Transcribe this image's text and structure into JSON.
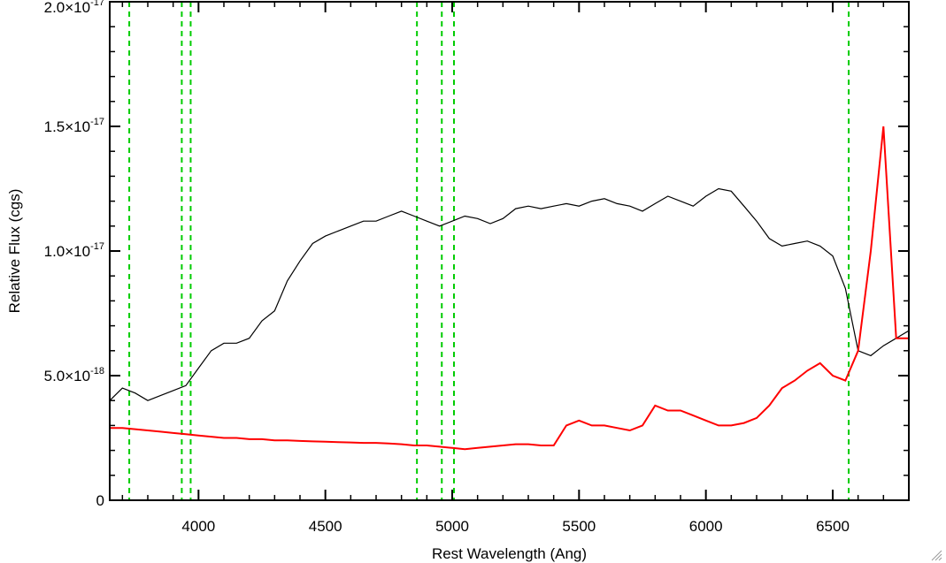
{
  "chart_data": {
    "type": "line",
    "title": "",
    "xlabel": "Rest Wavelength (Ang)",
    "ylabel": "Relative Flux (cgs)",
    "xlim": [
      3650,
      6800
    ],
    "ylim": [
      0,
      2e-17
    ],
    "x_ticks": [
      {
        "value": 4000,
        "label": "4000"
      },
      {
        "value": 4500,
        "label": "4500"
      },
      {
        "value": 5000,
        "label": "5000"
      },
      {
        "value": 5500,
        "label": "5500"
      },
      {
        "value": 6000,
        "label": "6000"
      },
      {
        "value": 6500,
        "label": "6500"
      }
    ],
    "y_ticks": [
      {
        "value": 0,
        "mant": "0",
        "exp": ""
      },
      {
        "value": 5e-18,
        "mant": "5.0×10",
        "exp": "-18"
      },
      {
        "value": 1e-17,
        "mant": "1.0×10",
        "exp": "-17"
      },
      {
        "value": 1.5e-17,
        "mant": "1.5×10",
        "exp": "-17"
      },
      {
        "value": 2e-17,
        "mant": "2.0×10",
        "exp": "-17"
      }
    ],
    "reference_lines": [
      3727,
      3934,
      3969,
      4861,
      4959,
      5007,
      6563
    ],
    "grid": false,
    "series": [
      {
        "color": "#000000",
        "x": [
          3650,
          3700,
          3750,
          3800,
          3850,
          3900,
          3950,
          4000,
          4050,
          4100,
          4150,
          4200,
          4250,
          4300,
          4350,
          4400,
          4450,
          4500,
          4550,
          4600,
          4650,
          4700,
          4750,
          4800,
          4850,
          4900,
          4950,
          5000,
          5050,
          5100,
          5150,
          5200,
          5250,
          5300,
          5350,
          5400,
          5450,
          5500,
          5550,
          5600,
          5650,
          5700,
          5750,
          5800,
          5850,
          5900,
          5950,
          6000,
          6050,
          6100,
          6150,
          6200,
          6250,
          6300,
          6350,
          6400,
          6450,
          6500,
          6550,
          6600,
          6650,
          6700,
          6750,
          6800
        ],
        "y": [
          4e-18,
          4.5e-18,
          4.3e-18,
          4e-18,
          4.2e-18,
          4.4e-18,
          4.6e-18,
          5.3e-18,
          6e-18,
          6.3e-18,
          6.3e-18,
          6.5e-18,
          7.2e-18,
          7.6e-18,
          8.8e-18,
          9.6e-18,
          1.03e-17,
          1.06e-17,
          1.08e-17,
          1.1e-17,
          1.12e-17,
          1.12e-17,
          1.14e-17,
          1.16e-17,
          1.14e-17,
          1.12e-17,
          1.1e-17,
          1.12e-17,
          1.14e-17,
          1.13e-17,
          1.11e-17,
          1.13e-17,
          1.17e-17,
          1.18e-17,
          1.17e-17,
          1.18e-17,
          1.19e-17,
          1.18e-17,
          1.2e-17,
          1.21e-17,
          1.19e-17,
          1.18e-17,
          1.16e-17,
          1.19e-17,
          1.22e-17,
          1.2e-17,
          1.18e-17,
          1.22e-17,
          1.25e-17,
          1.24e-17,
          1.18e-17,
          1.12e-17,
          1.05e-17,
          1.02e-17,
          1.03e-17,
          1.04e-17,
          1.02e-17,
          9.8e-18,
          8.5e-18,
          6e-18,
          5.8e-18,
          6.2e-18,
          6.5e-18,
          6.8e-18
        ]
      },
      {
        "color": "#ff0000",
        "x": [
          3650,
          3700,
          3750,
          3800,
          3850,
          3900,
          3950,
          4000,
          4050,
          4100,
          4150,
          4200,
          4250,
          4300,
          4350,
          4400,
          4450,
          4500,
          4550,
          4600,
          4650,
          4700,
          4750,
          4800,
          4850,
          4900,
          4950,
          5000,
          5050,
          5100,
          5150,
          5200,
          5250,
          5300,
          5350,
          5400,
          5450,
          5500,
          5550,
          5600,
          5650,
          5700,
          5750,
          5800,
          5850,
          5900,
          5950,
          6000,
          6050,
          6100,
          6150,
          6200,
          6250,
          6300,
          6350,
          6400,
          6450,
          6500,
          6550,
          6600,
          6650,
          6700,
          6750,
          6800
        ],
        "y": [
          2.9e-18,
          2.9e-18,
          2.85e-18,
          2.8e-18,
          2.75e-18,
          2.7e-18,
          2.65e-18,
          2.6e-18,
          2.55e-18,
          2.5e-18,
          2.5e-18,
          2.45e-18,
          2.45e-18,
          2.4e-18,
          2.4e-18,
          2.38e-18,
          2.36e-18,
          2.35e-18,
          2.33e-18,
          2.32e-18,
          2.3e-18,
          2.3e-18,
          2.28e-18,
          2.25e-18,
          2.2e-18,
          2.2e-18,
          2.15e-18,
          2.1e-18,
          2.05e-18,
          2.1e-18,
          2.15e-18,
          2.2e-18,
          2.25e-18,
          2.25e-18,
          2.2e-18,
          2.2e-18,
          3e-18,
          3.2e-18,
          3e-18,
          3e-18,
          2.9e-18,
          2.8e-18,
          3e-18,
          3.8e-18,
          3.6e-18,
          3.6e-18,
          3.4e-18,
          3.2e-18,
          3e-18,
          3e-18,
          3.1e-18,
          3.3e-18,
          3.8e-18,
          4.5e-18,
          4.8e-18,
          5.2e-18,
          5.5e-18,
          5e-18,
          4.8e-18,
          6e-18,
          1e-17,
          1.5e-17,
          6.5e-18,
          6.5e-18
        ]
      }
    ]
  }
}
